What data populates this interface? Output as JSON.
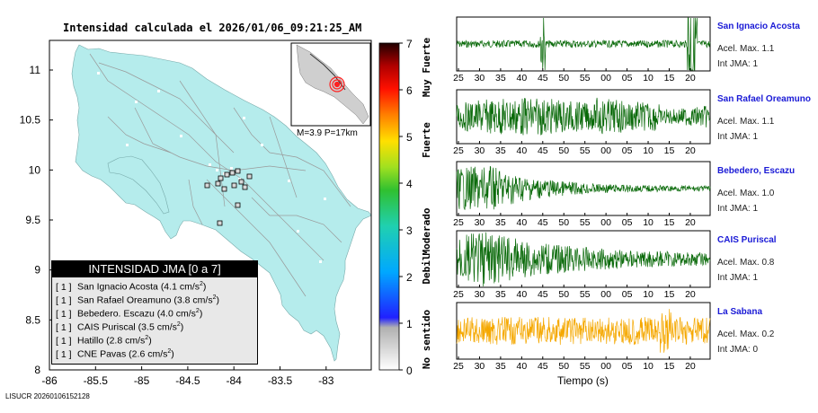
{
  "map": {
    "title": "Intensidad calculada el 2026/01/06_09:21:25_AM",
    "footer_id": "LISUCR 20260106152128",
    "y_ticks": [
      "11",
      "10.5",
      "10",
      "9.5",
      "9",
      "8.5",
      "8"
    ],
    "x_ticks": [
      "-86",
      "-85.5",
      "-85",
      "-84.5",
      "-84",
      "-83.5",
      "-83"
    ],
    "colors": {
      "land": "#b5ecec",
      "road": "#9a9a9a",
      "water": "#ffffff",
      "marker": "#ff2020"
    },
    "inset_label": "M=3.9 P=17km",
    "legend": {
      "title": "INTENSIDAD JMA [0 a 7]",
      "rows": [
        {
          "level": "[ 1 ]",
          "station": "San Ignacio Acosta (4.1 cm/s",
          "sup": "2",
          "close": ")"
        },
        {
          "level": "[ 1 ]",
          "station": "San Rafael Oreamuno (3.8 cm/s",
          "sup": "2",
          "close": ")"
        },
        {
          "level": "[ 1 ]",
          "station": "Bebedero. Escazu (4.0 cm/s",
          "sup": "2",
          "close": ")"
        },
        {
          "level": "[ 1 ]",
          "station": "CAIS Puriscal (3.5 cm/s",
          "sup": "2",
          "close": ")"
        },
        {
          "level": "[ 1 ]",
          "station": "Hatillo (2.8 cm/s",
          "sup": "2",
          "close": ")"
        },
        {
          "level": "[ 1 ]",
          "station": "CNE Pavas (2.6 cm/s",
          "sup": "2",
          "close": ")"
        }
      ]
    }
  },
  "colorbar": {
    "ticks": [
      "7",
      "6",
      "5",
      "4",
      "3",
      "2",
      "1",
      "0"
    ],
    "categories": [
      "Muy Fuerte",
      "Fuerte",
      "Moderado",
      "Debil",
      "No sentido"
    ]
  },
  "traces": {
    "x_ticks": [
      "25",
      "30",
      "35",
      "40",
      "45",
      "50",
      "55",
      "00",
      "05",
      "10",
      "15",
      "20"
    ],
    "x_label": "Tiempo (s)",
    "stations": [
      {
        "name": "San Ignacio Acosta",
        "accel": "Acel. Max. 1.1",
        "jma": "Int JMA: 1",
        "color": "#0a6a0a"
      },
      {
        "name": "San Rafael Oreamuno",
        "accel": "Acel. Max. 1.1",
        "jma": "Int JMA: 1",
        "color": "#0a6a0a"
      },
      {
        "name": "Bebedero, Escazu",
        "accel": "Acel. Max. 1.0",
        "jma": "Int JMA: 1",
        "color": "#0a6a0a"
      },
      {
        "name": "CAIS Puriscal",
        "accel": "Acel. Max. 0.8",
        "jma": "Int JMA: 1",
        "color": "#0a6a0a"
      },
      {
        "name": "La Sabana",
        "accel": "Acel. Max. 0.2",
        "jma": "Int JMA: 0",
        "color": "#f5a800"
      }
    ]
  }
}
